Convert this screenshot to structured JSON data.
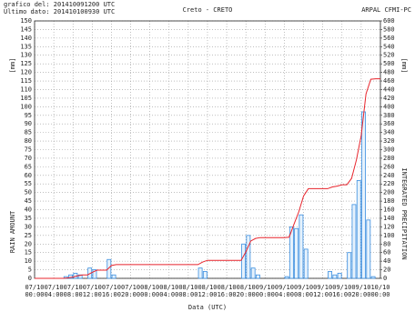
{
  "chart_data": {
    "type": "bar-line",
    "title": "Creto - CRETO",
    "header_left": [
      "grafico del: 201410091200 UTC",
      "Ultimo dato: 201410100930 UTC"
    ],
    "header_right": "ARPAL CFMI-PC",
    "xlabel": "Data (UTC)",
    "ylabel": "RAIN AMOUNT",
    "ylabel_unit": "[mm]",
    "y2label": "INTEGRATED PRECIPITATION",
    "y2label_unit": "[mm]",
    "grid": true,
    "xlim": [
      0,
      72
    ],
    "xticks": [
      {
        "value": 0,
        "label": [
          "07/10",
          "00:00"
        ]
      },
      {
        "value": 4,
        "label": [
          "07/10",
          "04:00"
        ]
      },
      {
        "value": 8,
        "label": [
          "07/10",
          "08:00"
        ]
      },
      {
        "value": 12,
        "label": [
          "07/10",
          "12:00"
        ]
      },
      {
        "value": 16,
        "label": [
          "07/10",
          "16:00"
        ]
      },
      {
        "value": 20,
        "label": [
          "07/10",
          "20:00"
        ]
      },
      {
        "value": 24,
        "label": [
          "08/10",
          "00:00"
        ]
      },
      {
        "value": 28,
        "label": [
          "08/10",
          "04:00"
        ]
      },
      {
        "value": 32,
        "label": [
          "08/10",
          "08:00"
        ]
      },
      {
        "value": 36,
        "label": [
          "08/10",
          "12:00"
        ]
      },
      {
        "value": 40,
        "label": [
          "08/10",
          "16:00"
        ]
      },
      {
        "value": 44,
        "label": [
          "08/10",
          "20:00"
        ]
      },
      {
        "value": 48,
        "label": [
          "09/10",
          "00:00"
        ]
      },
      {
        "value": 52,
        "label": [
          "09/10",
          "04:00"
        ]
      },
      {
        "value": 56,
        "label": [
          "09/10",
          "08:00"
        ]
      },
      {
        "value": 60,
        "label": [
          "09/10",
          "12:00"
        ]
      },
      {
        "value": 64,
        "label": [
          "09/10",
          "16:00"
        ]
      },
      {
        "value": 68,
        "label": [
          "09/10",
          "20:00"
        ]
      },
      {
        "value": 72,
        "label": [
          "10/10",
          "00:00"
        ]
      }
    ],
    "ylim": [
      0,
      150
    ],
    "yticks": [
      0,
      5,
      10,
      15,
      20,
      25,
      30,
      35,
      40,
      45,
      50,
      55,
      60,
      65,
      70,
      75,
      80,
      85,
      90,
      95,
      100,
      105,
      110,
      115,
      120,
      125,
      130,
      135,
      140,
      145,
      150
    ],
    "y2lim": [
      0,
      600
    ],
    "y2ticks": [
      0,
      20,
      40,
      60,
      80,
      100,
      120,
      140,
      160,
      180,
      200,
      220,
      240,
      260,
      280,
      300,
      320,
      340,
      360,
      380,
      400,
      420,
      440,
      460,
      480,
      500,
      520,
      540,
      560,
      580,
      600
    ],
    "series": [
      {
        "type": "bar",
        "color": "#3a8ee0",
        "x": [
          6,
          7,
          8,
          9,
          11,
          12,
          15,
          16,
          34,
          35,
          43,
          44,
          45,
          46,
          52,
          53,
          54,
          55,
          56,
          61,
          62,
          63,
          65,
          66,
          67,
          68,
          69,
          70
        ],
        "values": [
          1,
          2,
          3,
          2,
          6,
          5,
          11,
          2,
          6,
          4,
          20,
          25,
          6,
          2,
          1,
          30,
          29,
          37,
          17,
          4,
          2,
          3,
          15,
          43,
          57,
          97,
          34,
          1
        ]
      },
      {
        "type": "line",
        "axis": "y2",
        "color": "#e8242c",
        "x": [
          0,
          6,
          7,
          8,
          9,
          10,
          11,
          12,
          13,
          15,
          16,
          17,
          34,
          35,
          36,
          43,
          44,
          45,
          46,
          47,
          52,
          53,
          54,
          55,
          56,
          57,
          61,
          62,
          63,
          64,
          65,
          66,
          67,
          68,
          69,
          70,
          71,
          72
        ],
        "values": [
          0,
          0,
          1,
          3,
          6,
          8,
          8,
          14,
          19,
          19,
          30,
          32,
          32,
          38,
          42,
          42,
          62,
          87,
          93,
          95,
          95,
          96,
          126,
          155,
          192,
          209,
          209,
          213,
          215,
          218,
          218,
          233,
          276,
          333,
          430,
          464,
          465,
          465
        ]
      }
    ]
  }
}
